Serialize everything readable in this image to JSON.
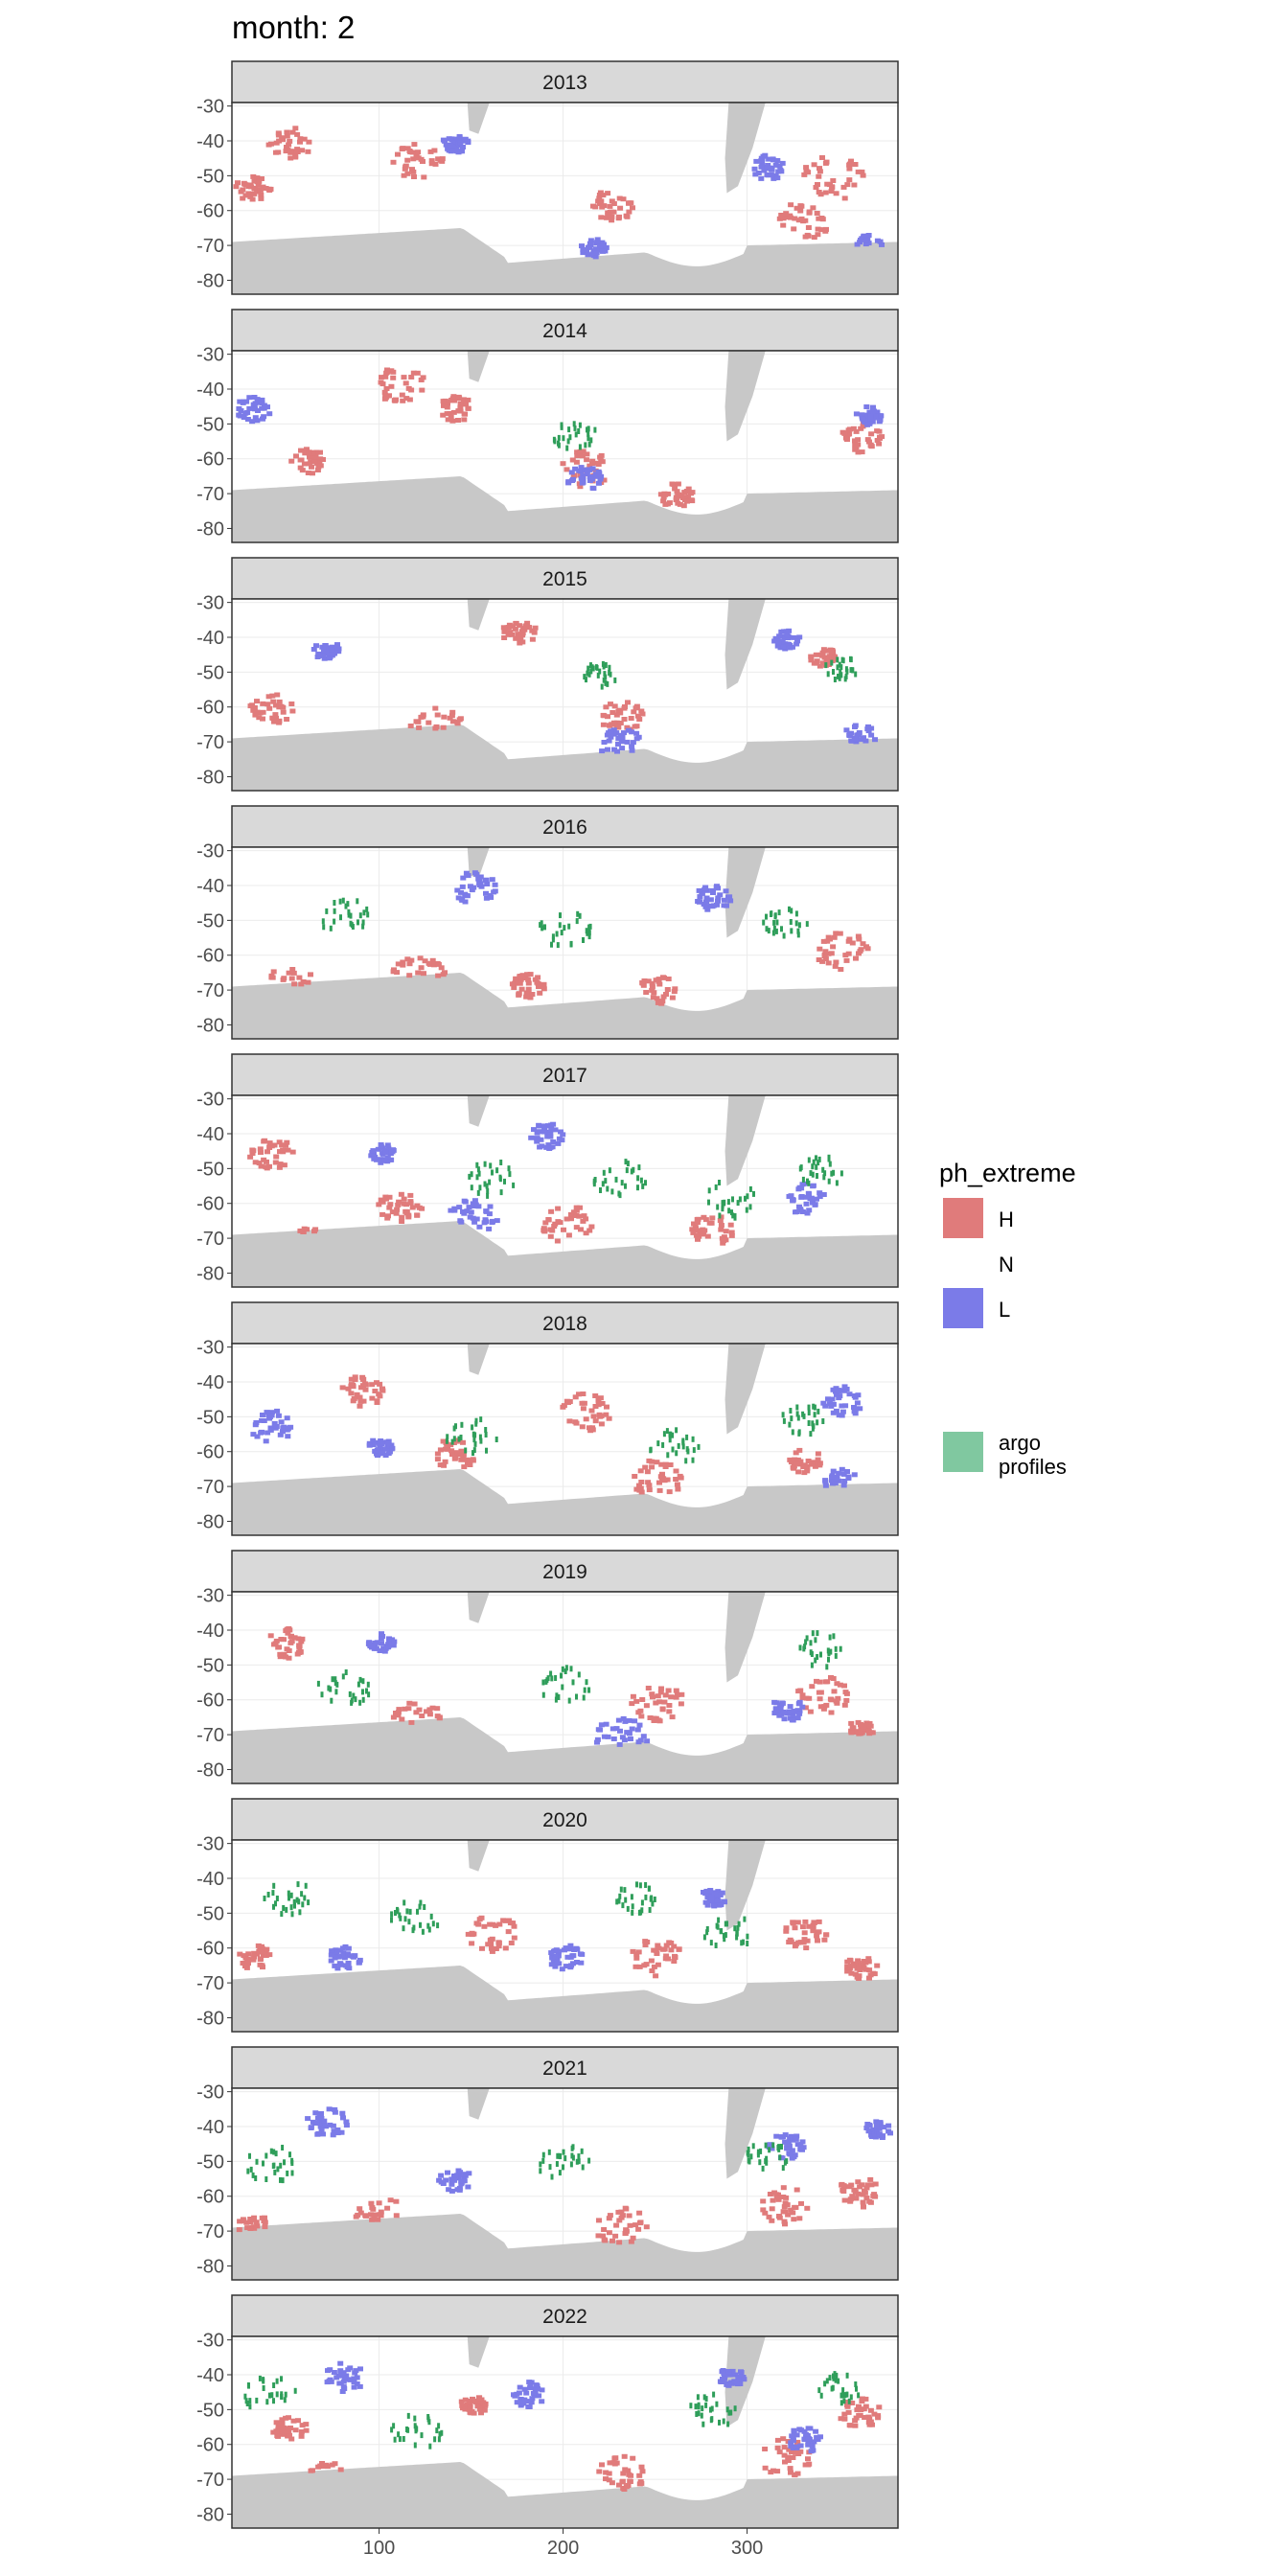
{
  "chart_data": {
    "type": "heatmap",
    "title": "month: 2",
    "xlabel": "",
    "ylabel": "",
    "xlim": [
      20,
      382
    ],
    "ylim": [
      -84,
      -29
    ],
    "x_ticks": [
      100,
      200,
      300
    ],
    "y_ticks": [
      -30,
      -40,
      -50,
      -60,
      -70,
      -80
    ],
    "grid": true,
    "facets": [
      "2013",
      "2014",
      "2015",
      "2016",
      "2017",
      "2018",
      "2019",
      "2020",
      "2021",
      "2022"
    ],
    "legend": {
      "title": "ph_extreme",
      "position": "right",
      "entries": [
        {
          "label": "H",
          "color": "#e07b7b"
        },
        {
          "label": "N",
          "color": "#ffffff"
        },
        {
          "label": "L",
          "color": "#7b7be8"
        }
      ],
      "argo_label_line1": "argo",
      "argo_label_line2": "profiles",
      "argo_color": "#80c8a0"
    },
    "panels": [
      {
        "year": "2013",
        "H": [
          [
            50,
            -40,
            5
          ],
          [
            120,
            -45,
            6
          ],
          [
            345,
            -50,
            7
          ],
          [
            30,
            -53,
            4
          ],
          [
            330,
            -62,
            6
          ],
          [
            225,
            -58,
            5
          ]
        ],
        "L": [
          [
            310,
            -47,
            4
          ],
          [
            215,
            -70,
            3
          ],
          [
            365,
            -69,
            3
          ],
          [
            140,
            -40,
            3
          ]
        ],
        "argo": []
      },
      {
        "year": "2014",
        "H": [
          [
            110,
            -38,
            6
          ],
          [
            140,
            -45,
            4
          ],
          [
            360,
            -53,
            5
          ],
          [
            210,
            -62,
            6
          ],
          [
            60,
            -60,
            4
          ],
          [
            260,
            -70,
            4
          ]
        ],
        "L": [
          [
            30,
            -45,
            4
          ],
          [
            210,
            -65,
            4
          ],
          [
            365,
            -47,
            3
          ]
        ],
        "argo": [
          [
            205,
            -52,
            5
          ]
        ]
      },
      {
        "year": "2015",
        "H": [
          [
            175,
            -38,
            4
          ],
          [
            40,
            -60,
            5
          ],
          [
            130,
            -65,
            6
          ],
          [
            230,
            -62,
            5
          ],
          [
            340,
            -45,
            3
          ]
        ],
        "L": [
          [
            230,
            -70,
            5
          ],
          [
            360,
            -68,
            4
          ],
          [
            320,
            -40,
            3
          ],
          [
            70,
            -43,
            3
          ]
        ],
        "argo": [
          [
            220,
            -50,
            4
          ],
          [
            350,
            -48,
            4
          ]
        ]
      },
      {
        "year": "2016",
        "H": [
          [
            50,
            -68,
            6
          ],
          [
            120,
            -65,
            6
          ],
          [
            350,
            -58,
            6
          ],
          [
            250,
            -70,
            5
          ],
          [
            180,
            -68,
            4
          ]
        ],
        "L": [
          [
            150,
            -40,
            5
          ],
          [
            280,
            -43,
            4
          ]
        ],
        "argo": [
          [
            80,
            -48,
            6
          ],
          [
            200,
            -52,
            6
          ],
          [
            320,
            -50,
            5
          ]
        ]
      },
      {
        "year": "2017",
        "H": [
          [
            40,
            -45,
            5
          ],
          [
            110,
            -60,
            5
          ],
          [
            200,
            -65,
            6
          ],
          [
            280,
            -67,
            5
          ],
          [
            60,
            -70,
            4
          ]
        ],
        "L": [
          [
            190,
            -40,
            4
          ],
          [
            150,
            -63,
            6
          ],
          [
            330,
            -58,
            5
          ],
          [
            100,
            -45,
            3
          ]
        ],
        "argo": [
          [
            160,
            -52,
            6
          ],
          [
            230,
            -52,
            6
          ],
          [
            290,
            -58,
            6
          ],
          [
            340,
            -50,
            5
          ]
        ]
      },
      {
        "year": "2018",
        "H": [
          [
            90,
            -42,
            5
          ],
          [
            210,
            -48,
            6
          ],
          [
            250,
            -67,
            6
          ],
          [
            140,
            -60,
            5
          ],
          [
            330,
            -62,
            4
          ]
        ],
        "L": [
          [
            40,
            -52,
            5
          ],
          [
            350,
            -45,
            5
          ],
          [
            350,
            -68,
            4
          ],
          [
            100,
            -58,
            3
          ]
        ],
        "argo": [
          [
            150,
            -55,
            6
          ],
          [
            260,
            -58,
            6
          ],
          [
            330,
            -50,
            5
          ]
        ]
      },
      {
        "year": "2019",
        "H": [
          [
            50,
            -43,
            5
          ],
          [
            120,
            -65,
            6
          ],
          [
            250,
            -60,
            6
          ],
          [
            340,
            -58,
            6
          ],
          [
            360,
            -68,
            3
          ]
        ],
        "L": [
          [
            230,
            -70,
            6
          ],
          [
            100,
            -43,
            3
          ],
          [
            320,
            -62,
            4
          ]
        ],
        "argo": [
          [
            80,
            -56,
            6
          ],
          [
            200,
            -55,
            6
          ],
          [
            340,
            -45,
            6
          ]
        ]
      },
      {
        "year": "2020",
        "H": [
          [
            160,
            -55,
            6
          ],
          [
            250,
            -62,
            6
          ],
          [
            30,
            -62,
            4
          ],
          [
            330,
            -55,
            5
          ],
          [
            360,
            -65,
            4
          ]
        ],
        "L": [
          [
            80,
            -62,
            4
          ],
          [
            200,
            -62,
            4
          ],
          [
            280,
            -45,
            3
          ]
        ],
        "argo": [
          [
            50,
            -45,
            6
          ],
          [
            120,
            -50,
            6
          ],
          [
            290,
            -55,
            6
          ],
          [
            240,
            -45,
            5
          ]
        ]
      },
      {
        "year": "2021",
        "H": [
          [
            100,
            -65,
            6
          ],
          [
            230,
            -68,
            6
          ],
          [
            320,
            -62,
            6
          ],
          [
            360,
            -58,
            5
          ],
          [
            30,
            -68,
            4
          ]
        ],
        "L": [
          [
            70,
            -38,
            5
          ],
          [
            140,
            -55,
            4
          ],
          [
            320,
            -45,
            4
          ],
          [
            370,
            -40,
            3
          ]
        ],
        "argo": [
          [
            40,
            -50,
            6
          ],
          [
            200,
            -50,
            6
          ],
          [
            310,
            -48,
            5
          ]
        ]
      },
      {
        "year": "2022",
        "H": [
          [
            230,
            -68,
            6
          ],
          [
            320,
            -63,
            6
          ],
          [
            360,
            -50,
            5
          ],
          [
            50,
            -55,
            4
          ],
          [
            70,
            -68,
            4
          ],
          [
            150,
            -48,
            3
          ]
        ],
        "L": [
          [
            80,
            -40,
            5
          ],
          [
            180,
            -45,
            4
          ],
          [
            330,
            -58,
            4
          ],
          [
            290,
            -40,
            3
          ]
        ],
        "argo": [
          [
            40,
            -45,
            6
          ],
          [
            120,
            -55,
            6
          ],
          [
            280,
            -50,
            6
          ],
          [
            350,
            -43,
            5
          ]
        ]
      }
    ]
  }
}
